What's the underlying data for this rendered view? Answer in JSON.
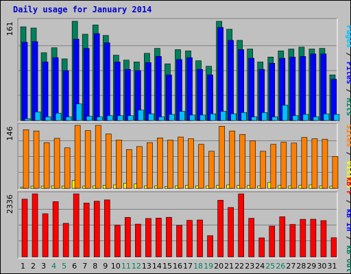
{
  "title": "Daily usage for January 2014",
  "colors": {
    "background": "#c0c0c0",
    "panel_bg": "#c0c0c0",
    "hits": "#00805c",
    "files": "#0000ff",
    "pages": "#00c0ff",
    "visits": "#ffff00",
    "sites": "#ff8000",
    "kbin": "#ff0000",
    "kbout": "#00805c",
    "weekday_tick": "#000000",
    "weekend_tick": "#00805c",
    "title": "#0000cc"
  },
  "legend": {
    "top": [
      {
        "text": "Pages",
        "color": "#00c0ff"
      },
      {
        "text": " / ",
        "color": "#000000"
      },
      {
        "text": "Files",
        "color": "#0000ff"
      },
      {
        "text": " / ",
        "color": "#000000"
      },
      {
        "text": "Hits",
        "color": "#00805c"
      }
    ],
    "middle": [
      {
        "text": "Sites",
        "color": "#ff8000"
      },
      {
        "text": " / ",
        "color": "#000000"
      },
      {
        "text": "Visits",
        "color": "#ffff00"
      }
    ],
    "bottom": [
      {
        "text": "kB F",
        "color": "#ff0000"
      },
      {
        "text": " / ",
        "color": "#000000"
      },
      {
        "text": "kB In",
        "color": "#0000ff"
      },
      {
        "text": " / ",
        "color": "#000000"
      },
      {
        "text": "kB Out",
        "color": "#00805c"
      }
    ]
  },
  "chart_data": [
    {
      "type": "bar",
      "name": "hits-files-pages",
      "ymax_label": "161",
      "ylim": [
        0,
        161
      ],
      "categories": [
        "1",
        "2",
        "3",
        "4",
        "5",
        "6",
        "7",
        "8",
        "9",
        "10",
        "11",
        "12",
        "13",
        "14",
        "15",
        "16",
        "17",
        "18",
        "19",
        "20",
        "21",
        "22",
        "23",
        "24",
        "25",
        "26",
        "27",
        "28",
        "29",
        "30",
        "31"
      ],
      "series": [
        {
          "name": "Hits",
          "values": [
            152,
            150,
            110,
            118,
            100,
            161,
            140,
            155,
            138,
            106,
            98,
            95,
            109,
            117,
            92,
            115,
            113,
            97,
            88,
            161,
            148,
            130,
            116,
            95,
            103,
            113,
            116,
            119,
            116,
            117,
            74
          ]
        },
        {
          "name": "Files",
          "values": [
            127,
            128,
            95,
            102,
            81,
            132,
            117,
            141,
            126,
            95,
            83,
            81,
            94,
            104,
            74,
            99,
            102,
            83,
            74,
            151,
            130,
            115,
            101,
            83,
            93,
            101,
            103,
            104,
            108,
            108,
            67
          ]
        },
        {
          "name": "Pages",
          "values": [
            3,
            14,
            6,
            12,
            6,
            27,
            7,
            6,
            8,
            8,
            8,
            17,
            11,
            6,
            10,
            15,
            9,
            9,
            11,
            15,
            11,
            13,
            6,
            13,
            6,
            25,
            8,
            10,
            6,
            11,
            10
          ]
        }
      ],
      "weekend_days": [
        "4",
        "5",
        "11",
        "12",
        "18",
        "19",
        "25",
        "26"
      ]
    },
    {
      "type": "bar",
      "name": "sites-visits",
      "ymax_label": "146",
      "ylim": [
        0,
        146
      ],
      "categories": [
        "1",
        "2",
        "3",
        "4",
        "5",
        "6",
        "7",
        "8",
        "9",
        "10",
        "11",
        "12",
        "13",
        "14",
        "15",
        "16",
        "17",
        "18",
        "19",
        "20",
        "21",
        "22",
        "23",
        "24",
        "25",
        "26",
        "27",
        "28",
        "29",
        "30",
        "31"
      ],
      "series": [
        {
          "name": "Sites",
          "values": [
            136,
            133,
            106,
            116,
            94,
            146,
            134,
            146,
            126,
            112,
            90,
            97,
            106,
            117,
            112,
            119,
            115,
            102,
            86,
            144,
            133,
            125,
            110,
            86,
            102,
            107,
            105,
            118,
            115,
            114,
            74
          ]
        },
        {
          "name": "Visits",
          "values": [
            3,
            5,
            5,
            6,
            5,
            18,
            5,
            6,
            7,
            8,
            12,
            10,
            6,
            6,
            4,
            6,
            7,
            6,
            6,
            7,
            8,
            7,
            7,
            6,
            14,
            7,
            6,
            7,
            8,
            6,
            5
          ]
        }
      ],
      "weekend_days": [
        "4",
        "5",
        "11",
        "12",
        "18",
        "19",
        "25",
        "26"
      ]
    },
    {
      "type": "bar",
      "name": "kbytes",
      "ymax_label": "2336",
      "ylim": [
        0,
        2336
      ],
      "categories": [
        "1",
        "2",
        "3",
        "4",
        "5",
        "6",
        "7",
        "8",
        "9",
        "10",
        "11",
        "12",
        "13",
        "14",
        "15",
        "16",
        "17",
        "18",
        "19",
        "20",
        "21",
        "22",
        "23",
        "24",
        "25",
        "26",
        "27",
        "28",
        "29",
        "30",
        "31"
      ],
      "series": [
        {
          "name": "kB F",
          "values": [
            2141,
            2336,
            1600,
            2049,
            1245,
            2336,
            1995,
            2065,
            2112,
            1176,
            1464,
            1216,
            1424,
            1438,
            1468,
            1168,
            1356,
            1369,
            788,
            2101,
            1831,
            2336,
            1431,
            707,
            1142,
            1488,
            1204,
            1393,
            1396,
            1346,
            712
          ]
        }
      ],
      "weekend_days": [
        "4",
        "5",
        "11",
        "12",
        "18",
        "19",
        "25",
        "26"
      ]
    }
  ]
}
